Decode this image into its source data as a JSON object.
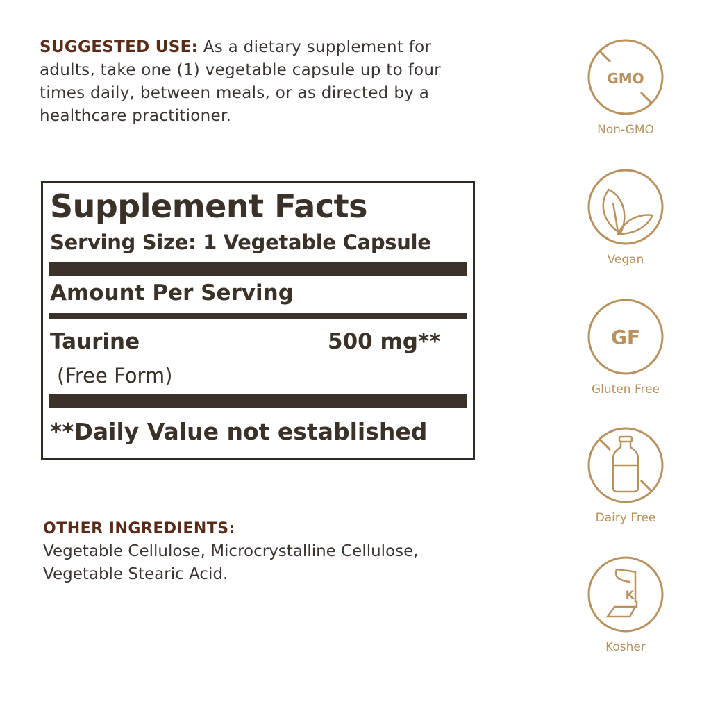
{
  "suggested_use": {
    "heading": "SUGGESTED USE:",
    "text": " As a dietary supplement for adults, take one (1) vegetable capsule up to four times daily, between meals, or as directed by a healthcare practitioner."
  },
  "facts": {
    "title": "Supplement Facts",
    "serving_size": "Serving Size: 1 Vegetable Capsule",
    "amount_per_serving": "Amount Per Serving",
    "ingredient": "Taurine",
    "ingredient_form": "(Free Form)",
    "amount": "500 mg**",
    "footnote": "**Daily Value not established"
  },
  "other_ingredients": {
    "heading": "OTHER INGREDIENTS:",
    "line1": "Vegetable Cellulose, Microcrystalline Cellulose,",
    "line2": "Vegetable Stearic Acid."
  },
  "badges": [
    {
      "label": "Non-GMO",
      "icon": "no-gmo-icon",
      "icon_text": "GMO"
    },
    {
      "label": "Vegan",
      "icon": "leaves-icon"
    },
    {
      "label": "Gluten Free",
      "icon": "gf-icon",
      "icon_text": "GF"
    },
    {
      "label": "Dairy Free",
      "icon": "no-milk-bottle-icon"
    },
    {
      "label": "Kosher",
      "icon": "kosher-icon",
      "icon_text": "K"
    }
  ],
  "colors": {
    "accent": "#b8915e",
    "heading_brown": "#5a2c18",
    "text": "#3b3430"
  }
}
